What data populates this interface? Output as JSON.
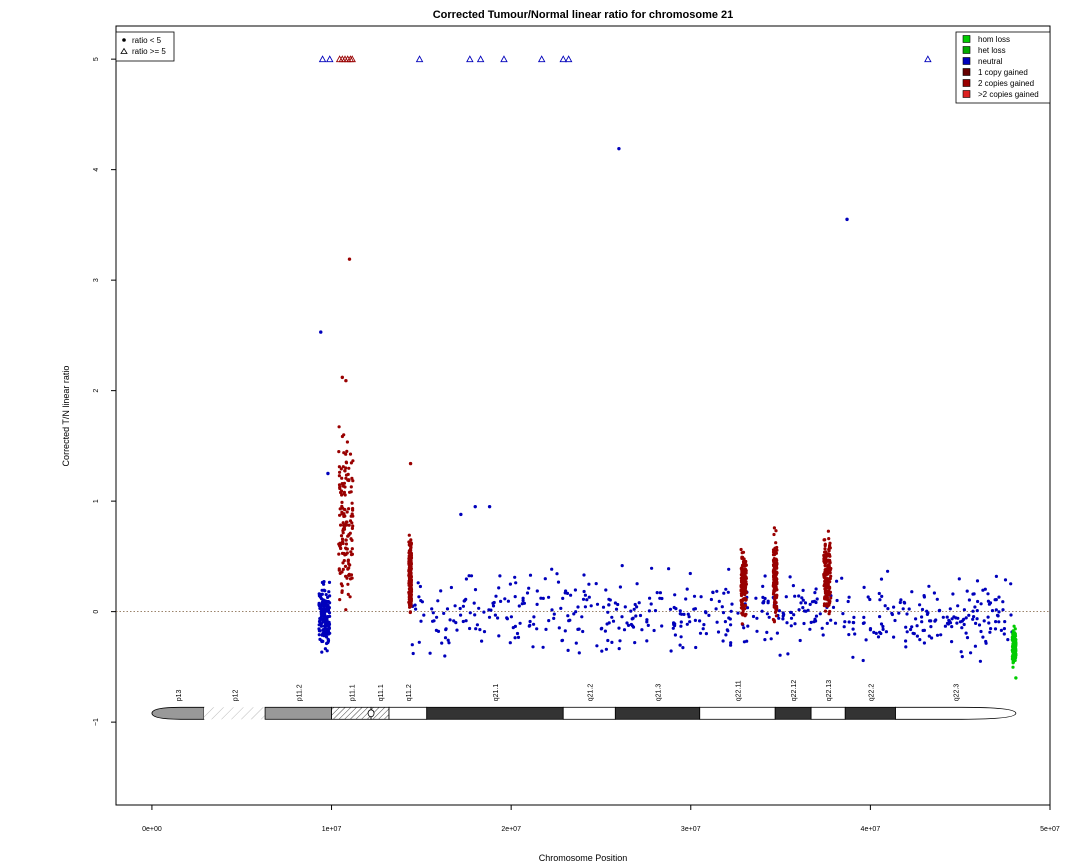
{
  "chart_data": {
    "type": "scatter",
    "title": "Corrected Tumour/Normal linear ratio for chromosome  21",
    "xlabel": "Chromosome Position",
    "ylabel": "Corrected T/N linear ratio",
    "xlim": [
      -2000000,
      50000000
    ],
    "ylim": [
      -1.75,
      5.3
    ],
    "x_ticks": [
      {
        "v": 0,
        "label": "0e+00"
      },
      {
        "v": 10000000,
        "label": "1e+07"
      },
      {
        "v": 20000000,
        "label": "2e+07"
      },
      {
        "v": 30000000,
        "label": "3e+07"
      },
      {
        "v": 40000000,
        "label": "4e+07"
      },
      {
        "v": 50000000,
        "label": "5e+07"
      }
    ],
    "y_ticks": [
      {
        "v": -1,
        "label": "−1"
      },
      {
        "v": 0,
        "label": "0"
      },
      {
        "v": 1,
        "label": "1"
      },
      {
        "v": 2,
        "label": "2"
      },
      {
        "v": 3,
        "label": "3"
      },
      {
        "v": 4,
        "label": "4"
      },
      {
        "v": 5,
        "label": "5"
      }
    ],
    "reference_line_y": 0,
    "legend_shape": {
      "position": "top-left",
      "items": [
        {
          "label": "ratio < 5",
          "symbol": "dot"
        },
        {
          "label": "ratio >= 5",
          "symbol": "triangle"
        }
      ]
    },
    "legend_state": {
      "position": "top-right",
      "items": [
        {
          "label": "hom loss",
          "color": "#00cc00"
        },
        {
          "label": "het loss",
          "color": "#00aa00"
        },
        {
          "label": "neutral",
          "color": "#0000bb"
        },
        {
          "label": "1 copy gained",
          "color": "#660000"
        },
        {
          "label": "2 copies gained",
          "color": "#990000"
        },
        {
          "label": ">2 copies gained",
          "color": "#dd2222"
        }
      ]
    },
    "series": [
      {
        "state": "neutral",
        "color": "#0000bb",
        "clusters": [
          {
            "x": [
              9300000,
              9900000
            ],
            "ymin": -0.4,
            "ymax": 0.3
          },
          {
            "x": [
              14400000,
              48000000
            ],
            "ymin": -0.45,
            "ymax": 0.4
          }
        ]
      },
      {
        "state": "gained",
        "color": "#990000",
        "clusters": [
          {
            "x": [
              10400000,
              11200000
            ],
            "ymin": -0.05,
            "ymax": 1.7
          },
          {
            "x": [
              14300000,
              14450000
            ],
            "ymin": -0.1,
            "ymax": 0.8
          },
          {
            "x": [
              32800000,
              33100000
            ],
            "ymin": -0.1,
            "ymax": 0.6
          },
          {
            "x": [
              34600000,
              34800000
            ],
            "ymin": -0.1,
            "ymax": 0.7
          },
          {
            "x": [
              37400000,
              37800000
            ],
            "ymin": -0.05,
            "ymax": 0.75
          }
        ]
      },
      {
        "state": "hom loss",
        "color": "#00cc00",
        "clusters": [
          {
            "x": [
              47900000,
              48100000
            ],
            "ymin": -0.5,
            "ymax": -0.15
          }
        ]
      }
    ],
    "outliers": [
      {
        "x": 9400000,
        "y": 2.53,
        "color": "#0000bb"
      },
      {
        "x": 10600000,
        "y": 2.12,
        "color": "#990000"
      },
      {
        "x": 10800000,
        "y": 2.09,
        "color": "#990000"
      },
      {
        "x": 11000000,
        "y": 3.19,
        "color": "#990000"
      },
      {
        "x": 9800000,
        "y": 1.25,
        "color": "#0000bb"
      },
      {
        "x": 14400000,
        "y": 1.34,
        "color": "#990000"
      },
      {
        "x": 17200000,
        "y": 0.88,
        "color": "#0000bb"
      },
      {
        "x": 18000000,
        "y": 0.95,
        "color": "#0000bb"
      },
      {
        "x": 18800000,
        "y": 0.95,
        "color": "#0000bb"
      },
      {
        "x": 26000000,
        "y": 4.19,
        "color": "#0000bb"
      },
      {
        "x": 38700000,
        "y": 3.55,
        "color": "#0000bb"
      },
      {
        "x": 48100000,
        "y": -0.6,
        "color": "#00cc00"
      }
    ],
    "high_ratio_points": [
      {
        "x": 9500000,
        "y": 5,
        "color": "#0000bb"
      },
      {
        "x": 9900000,
        "y": 5,
        "color": "#0000bb"
      },
      {
        "x": 10450000,
        "y": 5,
        "color": "#990000"
      },
      {
        "x": 10600000,
        "y": 5,
        "color": "#990000"
      },
      {
        "x": 10750000,
        "y": 5,
        "color": "#990000"
      },
      {
        "x": 10900000,
        "y": 5,
        "color": "#990000"
      },
      {
        "x": 11050000,
        "y": 5,
        "color": "#990000"
      },
      {
        "x": 11150000,
        "y": 5,
        "color": "#990000"
      },
      {
        "x": 14900000,
        "y": 5,
        "color": "#0000bb"
      },
      {
        "x": 17700000,
        "y": 5,
        "color": "#0000bb"
      },
      {
        "x": 18300000,
        "y": 5,
        "color": "#0000bb"
      },
      {
        "x": 19600000,
        "y": 5,
        "color": "#0000bb"
      },
      {
        "x": 21700000,
        "y": 5,
        "color": "#0000bb"
      },
      {
        "x": 22900000,
        "y": 5,
        "color": "#0000bb"
      },
      {
        "x": 23200000,
        "y": 5,
        "color": "#0000bb"
      },
      {
        "x": 43200000,
        "y": 5,
        "color": "#0000bb"
      }
    ],
    "ideogram": {
      "y": -0.92,
      "bands": [
        {
          "name": "p13",
          "start": 0,
          "end": 2900000,
          "fill": "#999999",
          "shape": "start"
        },
        {
          "name": "p12",
          "start": 2900000,
          "end": 6300000,
          "fill": "stalk"
        },
        {
          "name": "p11.2",
          "start": 6300000,
          "end": 10000000,
          "fill": "#999999"
        },
        {
          "name": "p11.1",
          "start": 10000000,
          "end": 12200000,
          "fill": "hatch"
        },
        {
          "name": "q11.1",
          "start": 12200000,
          "end": 13200000,
          "fill": "hatch"
        },
        {
          "name": "q11.2",
          "start": 13200000,
          "end": 15300000,
          "fill": "#ffffff"
        },
        {
          "name": "q21.1",
          "start": 15300000,
          "end": 22900000,
          "fill": "#333333"
        },
        {
          "name": "q21.2",
          "start": 22900000,
          "end": 25800000,
          "fill": "#ffffff"
        },
        {
          "name": "q21.3",
          "start": 25800000,
          "end": 30500000,
          "fill": "#333333"
        },
        {
          "name": "q22.11",
          "start": 30500000,
          "end": 34700000,
          "fill": "#ffffff"
        },
        {
          "name": "q22.12",
          "start": 34700000,
          "end": 36700000,
          "fill": "#333333"
        },
        {
          "name": "q22.13",
          "start": 36700000,
          "end": 38600000,
          "fill": "#ffffff"
        },
        {
          "name": "q22.2",
          "start": 38600000,
          "end": 41400000,
          "fill": "#333333"
        },
        {
          "name": "q22.3",
          "start": 41400000,
          "end": 48100000,
          "fill": "#ffffff",
          "shape": "end"
        }
      ]
    }
  }
}
